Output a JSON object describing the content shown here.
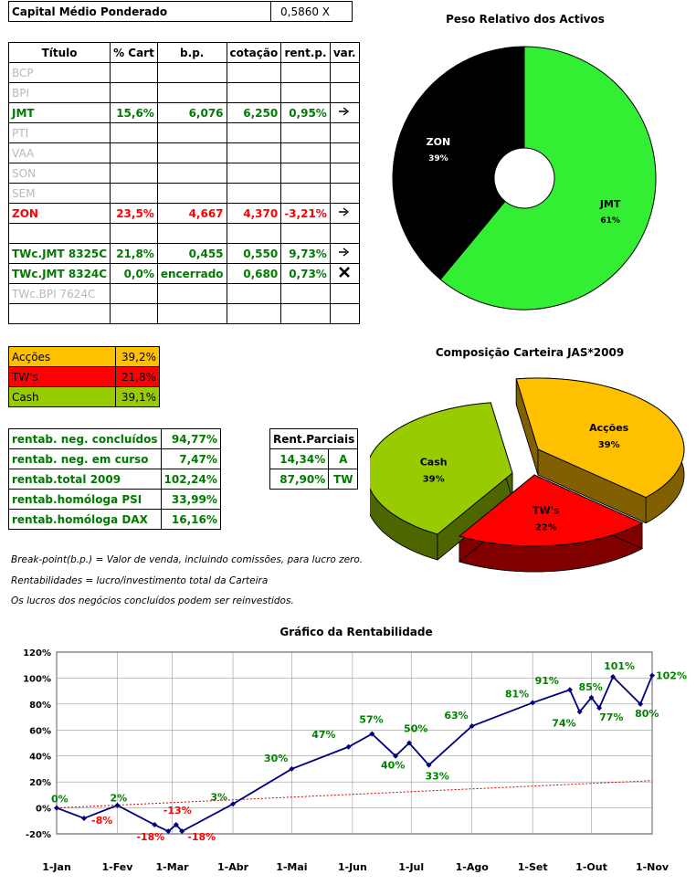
{
  "capital": {
    "label": "Capital Médio Ponderado",
    "value": "0,5860 X"
  },
  "portfolio": {
    "headers": [
      "Título",
      "% Cart",
      "b.p.",
      "cotação",
      "rent.p.",
      "var."
    ],
    "rows": [
      {
        "titulo": "BCP",
        "cart": "",
        "bp": "",
        "cot": "",
        "rent": "",
        "var": "",
        "style": "gray"
      },
      {
        "titulo": "BPI",
        "cart": "",
        "bp": "",
        "cot": "",
        "rent": "",
        "var": "",
        "style": "gray"
      },
      {
        "titulo": "JMT",
        "cart": "15,6%",
        "bp": "6,076",
        "cot": "6,250",
        "rent": "0,95%",
        "var": "arrow-right-icon",
        "style": "green"
      },
      {
        "titulo": "PTI",
        "cart": "",
        "bp": "",
        "cot": "",
        "rent": "",
        "var": "",
        "style": "gray"
      },
      {
        "titulo": "VAA",
        "cart": "",
        "bp": "",
        "cot": "",
        "rent": "",
        "var": "",
        "style": "gray"
      },
      {
        "titulo": "SON",
        "cart": "",
        "bp": "",
        "cot": "",
        "rent": "",
        "var": "",
        "style": "gray"
      },
      {
        "titulo": "SEM",
        "cart": "",
        "bp": "",
        "cot": "",
        "rent": "",
        "var": "",
        "style": "gray"
      },
      {
        "titulo": "ZON",
        "cart": "23,5%",
        "bp": "4,667",
        "cot": "4,370",
        "rent": "-3,21%",
        "var": "arrow-right-icon",
        "style": "red"
      },
      {
        "titulo": "",
        "cart": "",
        "bp": "",
        "cot": "",
        "rent": "",
        "var": "",
        "style": "gray"
      },
      {
        "titulo": "TWc.JMT 8325C",
        "cart": "21,8%",
        "bp": "0,455",
        "cot": "0,550",
        "rent": "9,73%",
        "var": "arrow-right-icon",
        "style": "green"
      },
      {
        "titulo": "TWc.JMT 8324C",
        "cart": "0,0%",
        "bp": "encerrado",
        "cot": "0,680",
        "rent": "0,73%",
        "var": "cross-icon",
        "style": "green"
      },
      {
        "titulo": "TWc.BPI 7624C",
        "cart": "",
        "bp": "",
        "cot": "",
        "rent": "",
        "var": "",
        "style": "gray"
      },
      {
        "titulo": "",
        "cart": "",
        "bp": "",
        "cot": "",
        "rent": "",
        "var": "",
        "style": "gray"
      }
    ]
  },
  "allocation": [
    {
      "label": "Acções",
      "value": "39,2%",
      "color": "#ffc000"
    },
    {
      "label": "TW's",
      "value": "21,8%",
      "color": "#ff0000"
    },
    {
      "label": "Cash",
      "value": "39,1%",
      "color": "#99cc00"
    }
  ],
  "rentab": [
    {
      "label": "rentab. neg. concluídos",
      "value": "94,77%"
    },
    {
      "label": "rentab. neg. em curso",
      "value": "7,47%"
    },
    {
      "label": "rentab.total 2009",
      "value": "102,24%"
    },
    {
      "label": "rentab.homóloga PSI",
      "value": "33,99%"
    },
    {
      "label": "rentab.homóloga DAX",
      "value": "16,16%"
    }
  ],
  "parciais": {
    "header": "Rent.Parciais",
    "rows": [
      {
        "value": "14,34%",
        "tag": "A"
      },
      {
        "value": "87,90%",
        "tag": "TW"
      }
    ]
  },
  "notes": [
    "Break-point(b.p.) = Valor de venda, incluindo comissões, para lucro zero.",
    "Rentabilidades = lucro/investimento total da Carteira",
    "Os lucros dos negócios concluídos podem ser reinvestidos."
  ],
  "chart_data": [
    {
      "type": "pie",
      "variant": "doughnut",
      "title": "Peso Relativo dos Activos",
      "slices": [
        {
          "label": "JMT",
          "percent_label": "61%",
          "value": 61,
          "color": "#33ee33"
        },
        {
          "label": "ZON",
          "percent_label": "39%",
          "value": 39,
          "color": "#000000"
        }
      ]
    },
    {
      "type": "pie",
      "variant": "3d-exploded",
      "title": "Composição Carteira JAS*2009",
      "slices": [
        {
          "label": "Acções",
          "percent_label": "39%",
          "value": 39.2,
          "color": "#ffc000"
        },
        {
          "label": "TW's",
          "percent_label": "22%",
          "value": 21.8,
          "color": "#ff0000"
        },
        {
          "label": "Cash",
          "percent_label": "39%",
          "value": 39.1,
          "color": "#99cc00"
        }
      ]
    },
    {
      "type": "line",
      "title": "Gráfico da Rentabilidade",
      "x_ticks": [
        "1-Jan",
        "1-Fev",
        "1-Mar",
        "1-Abr",
        "1-Mai",
        "1-Jun",
        "1-Jul",
        "1-Ago",
        "1-Set",
        "1-Out",
        "1-Nov"
      ],
      "y_ticks": [
        "-20%",
        "0%",
        "20%",
        "40%",
        "60%",
        "80%",
        "100%",
        "120%"
      ],
      "ylim": [
        -20,
        120
      ],
      "grid": true,
      "series": [
        {
          "color": "#000080",
          "points": [
            {
              "x": "2009-01-01",
              "y": 0,
              "label": "0%"
            },
            {
              "x": "2009-01-15",
              "y": -8,
              "label": "-8%"
            },
            {
              "x": "2009-02-01",
              "y": 2,
              "label": "2%"
            },
            {
              "x": "2009-02-20",
              "y": -13,
              "label": ""
            },
            {
              "x": "2009-02-27",
              "y": -18,
              "label": "-18%"
            },
            {
              "x": "2009-03-03",
              "y": -13,
              "label": "-13%"
            },
            {
              "x": "2009-03-06",
              "y": -18,
              "label": "-18%"
            },
            {
              "x": "2009-04-01",
              "y": 3,
              "label": "3%"
            },
            {
              "x": "2009-05-01",
              "y": 30,
              "label": "30%"
            },
            {
              "x": "2009-05-30",
              "y": 47,
              "label": "47%"
            },
            {
              "x": "2009-06-11",
              "y": 57,
              "label": "57%"
            },
            {
              "x": "2009-06-23",
              "y": 40,
              "label": "40%"
            },
            {
              "x": "2009-06-30",
              "y": 50,
              "label": "50%"
            },
            {
              "x": "2009-07-10",
              "y": 33,
              "label": "33%"
            },
            {
              "x": "2009-08-01",
              "y": 63,
              "label": "63%"
            },
            {
              "x": "2009-09-01",
              "y": 81,
              "label": "81%"
            },
            {
              "x": "2009-09-20",
              "y": 91,
              "label": "91%"
            },
            {
              "x": "2009-09-25",
              "y": 74,
              "label": "74%"
            },
            {
              "x": "2009-10-01",
              "y": 85,
              "label": "85%"
            },
            {
              "x": "2009-10-05",
              "y": 77,
              "label": "77%"
            },
            {
              "x": "2009-10-12",
              "y": 101,
              "label": "101%"
            },
            {
              "x": "2009-10-26",
              "y": 80,
              "label": "80%"
            },
            {
              "x": "2009-11-01",
              "y": 102,
              "label": "102%"
            }
          ]
        },
        {
          "color": "#cc0000",
          "style": "dashed",
          "points": [
            {
              "x": "2009-01-01",
              "y": 0
            },
            {
              "x": "2009-11-01",
              "y": 21
            }
          ]
        }
      ]
    }
  ]
}
